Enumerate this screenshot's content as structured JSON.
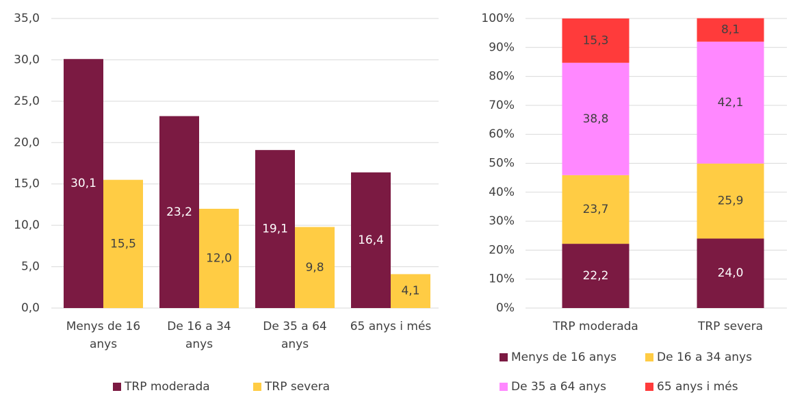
{
  "chart_data": [
    {
      "type": "bar",
      "categories": [
        "Menys de 16 anys",
        "De 16 a 34 anys",
        "De 35 a 64 anys",
        "65 anys i més"
      ],
      "series": [
        {
          "name": "TRP moderada",
          "color": "#7b1a42",
          "values": [
            30.1,
            23.2,
            19.1,
            16.4
          ],
          "value_labels": [
            "30,1",
            "23,2",
            "19,1",
            "16,4"
          ]
        },
        {
          "name": "TRP severa",
          "color": "#ffcc44",
          "values": [
            15.5,
            12.0,
            9.8,
            4.1
          ],
          "value_labels": [
            "15,5",
            "12,0",
            "9,8",
            "4,1"
          ]
        }
      ],
      "ylim": [
        0,
        35
      ],
      "yticks": [
        {
          "value": 0,
          "label": "0,0"
        },
        {
          "value": 5,
          "label": "5,0"
        },
        {
          "value": 10,
          "label": "10,0"
        },
        {
          "value": 15,
          "label": "15,0"
        },
        {
          "value": 20,
          "label": "20,0"
        },
        {
          "value": 25,
          "label": "25,0"
        },
        {
          "value": 30,
          "label": "30,0"
        },
        {
          "value": 35,
          "label": "35,0"
        }
      ],
      "grid": true,
      "legend": "bottom"
    },
    {
      "type": "stacked_bar",
      "categories": [
        "TRP moderada",
        "TRP severa"
      ],
      "series": [
        {
          "name": "Menys de 16 anys",
          "color": "#7b1a42",
          "values": [
            22.2,
            24.0
          ],
          "value_labels": [
            "22,2",
            "24,0"
          ]
        },
        {
          "name": "De 16 a 34 anys",
          "color": "#ffcc44",
          "values": [
            23.7,
            25.9
          ],
          "value_labels": [
            "23,7",
            "25,9"
          ]
        },
        {
          "name": "De 35 a 64 anys",
          "color": "#ff88ff",
          "values": [
            38.8,
            42.1
          ],
          "value_labels": [
            "38,8",
            "42,1"
          ]
        },
        {
          "name": "65 anys i més",
          "color": "#ff3b3b",
          "values": [
            15.3,
            8.1
          ],
          "value_labels": [
            "15,3",
            "8,1"
          ]
        }
      ],
      "ylim": [
        0,
        100
      ],
      "yticks": [
        {
          "value": 0,
          "label": "0%"
        },
        {
          "value": 10,
          "label": "10%"
        },
        {
          "value": 20,
          "label": "20%"
        },
        {
          "value": 30,
          "label": "30%"
        },
        {
          "value": 40,
          "label": "40%"
        },
        {
          "value": 50,
          "label": "50%"
        },
        {
          "value": 60,
          "label": "60%"
        },
        {
          "value": 70,
          "label": "70%"
        },
        {
          "value": 80,
          "label": "80%"
        },
        {
          "value": 90,
          "label": "90%"
        },
        {
          "value": 100,
          "label": "100%"
        }
      ],
      "grid": true,
      "legend": "bottom"
    }
  ]
}
